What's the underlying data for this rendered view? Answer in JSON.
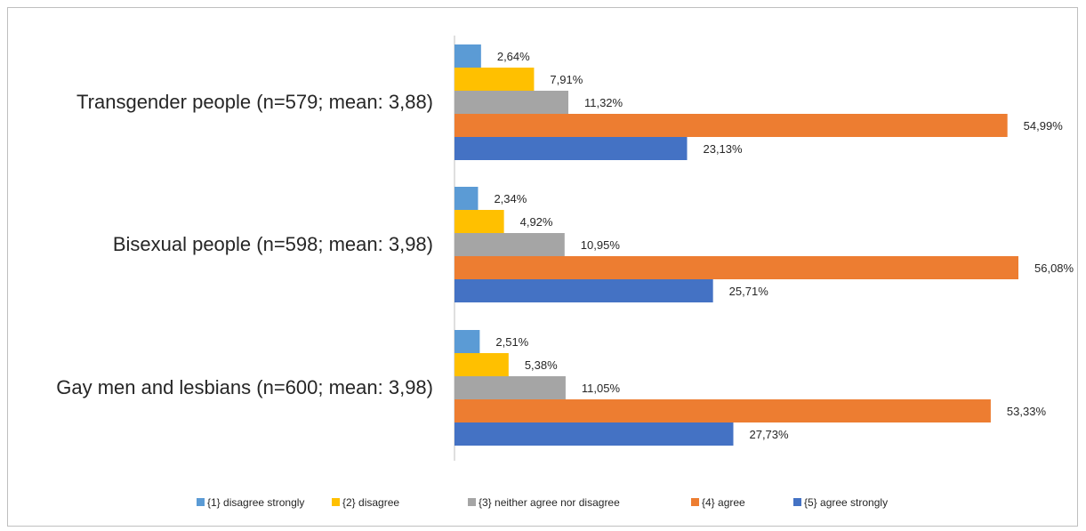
{
  "chart_data": {
    "type": "bar",
    "orientation": "horizontal",
    "categories": [
      "Transgender people (n=579; mean: 3,88)",
      "Bisexual people (n=598; mean: 3,98)",
      "Gay men and lesbians (n=600; mean: 3,98)"
    ],
    "series": [
      {
        "name": "{1}  disagree strongly",
        "color": "#5B9BD5",
        "values": [
          2.64,
          2.34,
          2.51
        ],
        "labels": [
          "2,64%",
          "2,34%",
          "2,51%"
        ]
      },
      {
        "name": "{2}  disagree",
        "color": "#FFC000",
        "values": [
          7.91,
          4.92,
          5.38
        ],
        "labels": [
          "7,91%",
          "4,92%",
          "5,38%"
        ]
      },
      {
        "name": "{3}  neither agree nor disagree",
        "color": "#A5A5A5",
        "values": [
          11.32,
          10.95,
          11.05
        ],
        "labels": [
          "11,32%",
          "10,95%",
          "11,05%"
        ]
      },
      {
        "name": "{4}  agree",
        "color": "#ED7D31",
        "values": [
          54.99,
          56.08,
          53.33
        ],
        "labels": [
          "54,99%",
          "56,08%",
          "53,33%"
        ]
      },
      {
        "name": "{5}  agree strongly",
        "color": "#4472C4",
        "values": [
          23.13,
          25.71,
          27.73
        ],
        "labels": [
          "23,13%",
          "25,71%",
          "27,73%"
        ]
      }
    ],
    "unit": "%",
    "xlim": [
      0,
      56.08
    ],
    "grid": false,
    "legend": "bottom"
  }
}
